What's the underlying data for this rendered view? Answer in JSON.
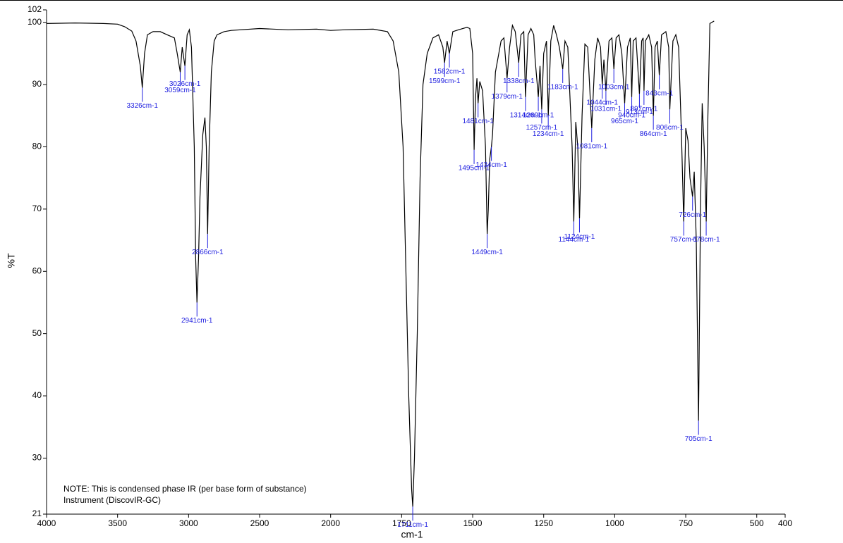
{
  "chart_data": {
    "type": "line",
    "x_label": "cm-1",
    "y_label": "%T",
    "notes": [
      "NOTE: This is condensed phase IR (per base form of substance)",
      "Instrument (DiscovIR-GC)"
    ],
    "xlim": [
      4000,
      400
    ],
    "x_scale_break": 2000,
    "x_scale_ratio": 2,
    "xticks": [
      4000,
      3500,
      3000,
      2500,
      2000,
      1750,
      1500,
      1250,
      1000,
      750,
      500,
      400
    ],
    "ylim": [
      21,
      102
    ],
    "yticks": [
      21,
      30,
      40,
      50,
      60,
      70,
      80,
      90,
      100,
      102
    ],
    "color": "#000000",
    "annotation_color": "#2020e0",
    "x": [
      4000,
      3800,
      3600,
      3500,
      3450,
      3400,
      3370,
      3340,
      3326,
      3310,
      3290,
      3250,
      3200,
      3150,
      3100,
      3080,
      3059,
      3045,
      3026,
      3010,
      2995,
      2980,
      2960,
      2950,
      2941,
      2930,
      2920,
      2900,
      2885,
      2875,
      2866,
      2855,
      2840,
      2820,
      2800,
      2750,
      2700,
      2500,
      2300,
      2100,
      2000,
      1950,
      1850,
      1800,
      1780,
      1760,
      1745,
      1735,
      1725,
      1715,
      1711,
      1705,
      1695,
      1685,
      1675,
      1660,
      1640,
      1620,
      1605,
      1599,
      1590,
      1582,
      1570,
      1550,
      1520,
      1510,
      1500,
      1495,
      1490,
      1485,
      1481,
      1475,
      1465,
      1455,
      1449,
      1445,
      1440,
      1434,
      1430,
      1420,
      1400,
      1390,
      1379,
      1370,
      1360,
      1350,
      1338,
      1330,
      1320,
      1314,
      1305,
      1295,
      1285,
      1280,
      1269,
      1263,
      1257,
      1250,
      1240,
      1234,
      1225,
      1215,
      1205,
      1195,
      1183,
      1175,
      1165,
      1150,
      1144,
      1137,
      1130,
      1124,
      1115,
      1105,
      1095,
      1081,
      1070,
      1060,
      1050,
      1044,
      1038,
      1031,
      1020,
      1010,
      1003,
      995,
      985,
      975,
      965,
      955,
      945,
      940,
      935,
      925,
      913,
      905,
      900,
      897,
      892,
      880,
      870,
      864,
      858,
      850,
      843,
      835,
      820,
      810,
      806,
      795,
      785,
      775,
      765,
      757,
      750,
      742,
      735,
      726,
      720,
      713,
      705,
      698,
      692,
      685,
      678,
      672,
      665,
      650
    ],
    "values": [
      99.8,
      99.9,
      99.8,
      99.7,
      99.3,
      98.6,
      97,
      93,
      89.5,
      95,
      98,
      98.5,
      98.5,
      98,
      97.5,
      95,
      92,
      96,
      93,
      98,
      98.8,
      96,
      80,
      62,
      55,
      62,
      72,
      82,
      84.7,
      80,
      66,
      80,
      92,
      97,
      98,
      98.5,
      98.7,
      99,
      98.8,
      98.9,
      98.7,
      98.8,
      98.9,
      98.5,
      97,
      92,
      80,
      60,
      40,
      25,
      22.2,
      30,
      50,
      75,
      90,
      95,
      97.5,
      98,
      96,
      93.5,
      97,
      95,
      98.5,
      98.8,
      99.2,
      99,
      95,
      79.5,
      88,
      91,
      87,
      90.5,
      89,
      80,
      66,
      70,
      78,
      80,
      82,
      92,
      97,
      97.5,
      91,
      96,
      99.5,
      98.5,
      93.5,
      98,
      98.5,
      88,
      98,
      99,
      98,
      94,
      88,
      93,
      86,
      95,
      97,
      85,
      97,
      99.5,
      98,
      96,
      92.5,
      97,
      96,
      80,
      68,
      84,
      80,
      68.5,
      85,
      96.5,
      96,
      83,
      94,
      97.5,
      96,
      90,
      94,
      89,
      97,
      97.5,
      92.5,
      97.5,
      98,
      95,
      87,
      96,
      97.5,
      88,
      97,
      97.5,
      88.5,
      97,
      97.5,
      89,
      97,
      98,
      96,
      85,
      96,
      97,
      91.5,
      98,
      98.5,
      96,
      86,
      97,
      98,
      96,
      82,
      68,
      83,
      81,
      75,
      72,
      76,
      65,
      36,
      70,
      87,
      80,
      68,
      85,
      99.8,
      100.2
    ],
    "annotations": [
      {
        "x": 3326,
        "y": 89.5,
        "text": "3326cm-1"
      },
      {
        "x": 3059,
        "y": 92,
        "text": "3059cm-1"
      },
      {
        "x": 3026,
        "y": 93,
        "text": "3026cm-1"
      },
      {
        "x": 2941,
        "y": 55,
        "text": "2941cm-1"
      },
      {
        "x": 2866,
        "y": 66,
        "text": "2866cm-1"
      },
      {
        "x": 1711,
        "y": 22.2,
        "text": "1711cm-1"
      },
      {
        "x": 1599,
        "y": 93.5,
        "text": "1599cm-1"
      },
      {
        "x": 1582,
        "y": 95,
        "text": "1582cm-1"
      },
      {
        "x": 1495,
        "y": 79.5,
        "text": "1495cm-1"
      },
      {
        "x": 1481,
        "y": 87,
        "text": "1481cm-1"
      },
      {
        "x": 1449,
        "y": 66,
        "text": "1449cm-1"
      },
      {
        "x": 1434,
        "y": 80,
        "text": "1434cm-1"
      },
      {
        "x": 1379,
        "y": 91,
        "text": "1379cm-1"
      },
      {
        "x": 1338,
        "y": 93.5,
        "text": "1338cm-1"
      },
      {
        "x": 1314,
        "y": 88,
        "text": "1314cm-1"
      },
      {
        "x": 1269,
        "y": 88,
        "text": "1269cm-1"
      },
      {
        "x": 1257,
        "y": 86,
        "text": "1257cm-1"
      },
      {
        "x": 1234,
        "y": 85,
        "text": "1234cm-1"
      },
      {
        "x": 1183,
        "y": 92.5,
        "text": "1183cm-1"
      },
      {
        "x": 1144,
        "y": 68,
        "text": "1144cm-1"
      },
      {
        "x": 1124,
        "y": 68.5,
        "text": "1124cm-1"
      },
      {
        "x": 1081,
        "y": 83,
        "text": "1081cm-1"
      },
      {
        "x": 1044,
        "y": 90,
        "text": "1044cm-1"
      },
      {
        "x": 1031,
        "y": 89,
        "text": "1031cm-1"
      },
      {
        "x": 1003,
        "y": 92.5,
        "text": "1003cm-1"
      },
      {
        "x": 965,
        "y": 87,
        "text": "965cm-1"
      },
      {
        "x": 940,
        "y": 88,
        "text": "940cm-1"
      },
      {
        "x": 913,
        "y": 88.5,
        "text": "913cm-1"
      },
      {
        "x": 897,
        "y": 89,
        "text": "897cm-1"
      },
      {
        "x": 864,
        "y": 85,
        "text": "864cm-1"
      },
      {
        "x": 843,
        "y": 91.5,
        "text": "843cm-1"
      },
      {
        "x": 806,
        "y": 86,
        "text": "806cm-1"
      },
      {
        "x": 757,
        "y": 68,
        "text": "757cm-1"
      },
      {
        "x": 726,
        "y": 72,
        "text": "726cm-1"
      },
      {
        "x": 705,
        "y": 36,
        "text": "705cm-1"
      },
      {
        "x": 678,
        "y": 68,
        "text": "678cm-1"
      }
    ]
  }
}
